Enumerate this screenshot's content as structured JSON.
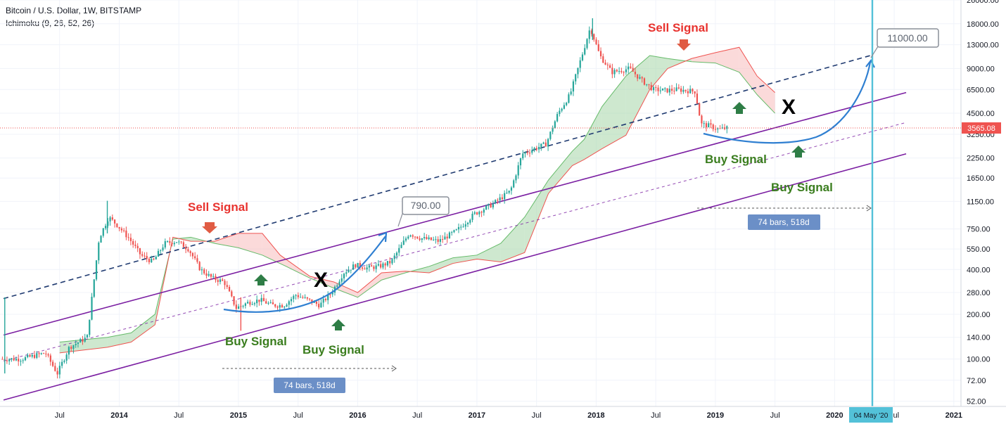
{
  "header": {
    "title": "Bitcoin / U.S. Dollar, 1W, BITSTAMP",
    "indicator": "Ichimoku (9, 26, 52, 26)"
  },
  "colors": {
    "up": "#26a69a",
    "down": "#ef5350",
    "cloud_green": "#a5d6a7",
    "cloud_red": "#f8bbbb",
    "channel": "#7b1fa2",
    "dash_blue": "#1f3a70",
    "curve": "#2f7fd1",
    "vline": "#53c1d8",
    "arrow_red": "#e05b43",
    "arrow_green": "#2e7d46"
  },
  "chart_data": {
    "type": "candlestick",
    "scale": "log",
    "ylim": [
      48,
      26000
    ],
    "y_ticks": [
      "26000.00",
      "18000.00",
      "13000.00",
      "9000.00",
      "6500.00",
      "4500.00",
      "3250.00",
      "2250.00",
      "1650.00",
      "1150.00",
      "750.00",
      "550.00",
      "400.00",
      "280.00",
      "200.00",
      "140.00",
      "100.00",
      "72.00",
      "52.00"
    ],
    "x_ticks": [
      {
        "label": "Jul",
        "bold": false
      },
      {
        "label": "2014",
        "bold": true
      },
      {
        "label": "Jul",
        "bold": false
      },
      {
        "label": "2015",
        "bold": true
      },
      {
        "label": "Jul",
        "bold": false
      },
      {
        "label": "2016",
        "bold": true
      },
      {
        "label": "Jul",
        "bold": false
      },
      {
        "label": "2017",
        "bold": true
      },
      {
        "label": "Jul",
        "bold": false
      },
      {
        "label": "2018",
        "bold": true
      },
      {
        "label": "Jul",
        "bold": false
      },
      {
        "label": "2019",
        "bold": true
      },
      {
        "label": "Jul",
        "bold": false
      },
      {
        "label": "2020",
        "bold": true
      },
      {
        "label": "Jul",
        "bold": false
      },
      {
        "label": "2021",
        "bold": true
      }
    ],
    "price_path": [
      [
        2013.2,
        100
      ],
      [
        2013.4,
        110
      ],
      [
        2013.5,
        80
      ],
      [
        2013.6,
        120
      ],
      [
        2013.75,
        140
      ],
      [
        2013.85,
        650
      ],
      [
        2013.93,
        900
      ],
      [
        2014.0,
        800
      ],
      [
        2014.1,
        650
      ],
      [
        2014.2,
        500
      ],
      [
        2014.3,
        450
      ],
      [
        2014.4,
        600
      ],
      [
        2014.5,
        620
      ],
      [
        2014.6,
        550
      ],
      [
        2014.7,
        400
      ],
      [
        2014.8,
        350
      ],
      [
        2014.9,
        330
      ],
      [
        2015.0,
        220
      ],
      [
        2015.1,
        240
      ],
      [
        2015.2,
        250
      ],
      [
        2015.3,
        230
      ],
      [
        2015.4,
        230
      ],
      [
        2015.5,
        270
      ],
      [
        2015.6,
        250
      ],
      [
        2015.7,
        230
      ],
      [
        2015.8,
        280
      ],
      [
        2015.9,
        380
      ],
      [
        2016.0,
        430
      ],
      [
        2016.1,
        410
      ],
      [
        2016.2,
        420
      ],
      [
        2016.3,
        450
      ],
      [
        2016.45,
        700
      ],
      [
        2016.55,
        650
      ],
      [
        2016.7,
        620
      ],
      [
        2016.85,
        730
      ],
      [
        2017.0,
        950
      ],
      [
        2017.15,
        1100
      ],
      [
        2017.3,
        1350
      ],
      [
        2017.4,
        2400
      ],
      [
        2017.5,
        2600
      ],
      [
        2017.6,
        2800
      ],
      [
        2017.7,
        4500
      ],
      [
        2017.8,
        6000
      ],
      [
        2017.9,
        11000
      ],
      [
        2017.97,
        17000
      ],
      [
        2018.05,
        11000
      ],
      [
        2018.15,
        8500
      ],
      [
        2018.3,
        9000
      ],
      [
        2018.4,
        7500
      ],
      [
        2018.5,
        6500
      ],
      [
        2018.6,
        6400
      ],
      [
        2018.7,
        6500
      ],
      [
        2018.85,
        6300
      ],
      [
        2018.9,
        3800
      ],
      [
        2018.97,
        3700
      ],
      [
        2019.05,
        3500
      ],
      [
        2019.1,
        3565
      ]
    ],
    "last_price": "3565.08",
    "events": {
      "march_2013": 70,
      "spike_2013": 1160,
      "ath_2017": 19600,
      "dip_2015": 155,
      "halving_marker": 790,
      "target": 11000
    }
  },
  "annotations": {
    "sell_signal_1": "Sell Signal",
    "sell_signal_2": "Sell Signal",
    "buy_signal_1": "Buy Signal",
    "buy_signal_2": "Buy Signal",
    "buy_signal_3": "Buy Signal",
    "buy_signal_4": "Buy Signal",
    "callout_790": "790.00",
    "callout_11000": "11000.00",
    "x_mark": "X",
    "range_label_1": "74 bars, 518d",
    "range_label_2": "74 bars, 518d",
    "vline_label": "04 May '20",
    "last_price_label": "3565.08"
  }
}
